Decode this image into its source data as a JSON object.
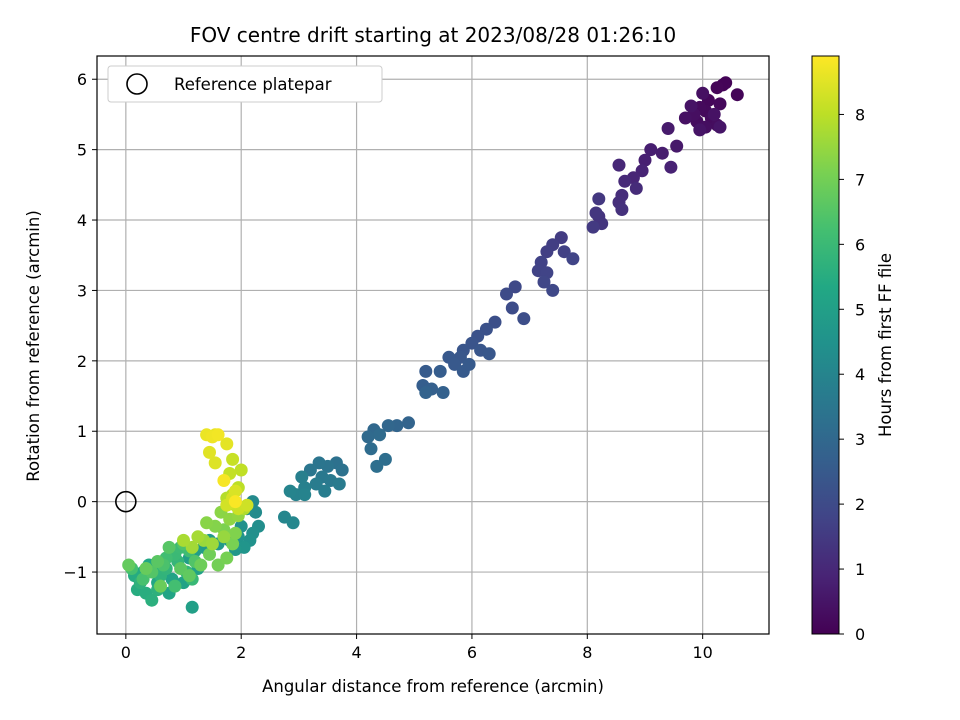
{
  "chart_data": {
    "type": "scatter",
    "title": "FOV centre drift starting at 2023/08/28 01:26:10",
    "xlabel": "Angular distance from reference (arcmin)",
    "ylabel": "Rotation from reference (arcmin)",
    "xlim": [
      -0.5,
      11.15
    ],
    "ylim": [
      -1.88,
      6.33
    ],
    "xticks": [
      0,
      2,
      4,
      6,
      8,
      10
    ],
    "yticks": [
      -1,
      0,
      1,
      2,
      3,
      4,
      5,
      6
    ],
    "grid": true,
    "legend": {
      "location": "upper-left",
      "entries": [
        "Reference platepar"
      ]
    },
    "colorbar": {
      "label": "Hours from first FF file",
      "colormap": "viridis",
      "range": [
        0,
        8.9
      ],
      "ticks": [
        0,
        1,
        2,
        3,
        4,
        5,
        6,
        7,
        8
      ]
    },
    "reference_point": {
      "x": 0,
      "y": 0,
      "name": "Reference platepar"
    },
    "point_fields": [
      "x",
      "y",
      "hours"
    ],
    "points": [
      [
        10.35,
        5.92,
        0.05
      ],
      [
        10.4,
        5.95,
        0.08
      ],
      [
        10.6,
        5.78,
        0.1
      ],
      [
        10.25,
        5.88,
        0.12
      ],
      [
        10.1,
        5.7,
        0.15
      ],
      [
        10.3,
        5.65,
        0.18
      ],
      [
        10.05,
        5.55,
        0.2
      ],
      [
        9.95,
        5.6,
        0.22
      ],
      [
        10.15,
        5.45,
        0.25
      ],
      [
        9.9,
        5.4,
        0.28
      ],
      [
        10.25,
        5.35,
        0.3
      ],
      [
        10.05,
        5.32,
        0.32
      ],
      [
        9.85,
        5.5,
        0.35
      ],
      [
        10.0,
        5.8,
        0.38
      ],
      [
        9.7,
        5.45,
        0.4
      ],
      [
        10.2,
        5.5,
        0.42
      ],
      [
        9.8,
        5.62,
        0.45
      ],
      [
        9.95,
        5.28,
        0.48
      ],
      [
        10.3,
        5.32,
        0.5
      ],
      [
        9.55,
        5.05,
        0.6
      ],
      [
        9.4,
        5.3,
        0.65
      ],
      [
        9.3,
        4.95,
        0.7
      ],
      [
        9.1,
        5.0,
        0.75
      ],
      [
        9.0,
        4.85,
        0.8
      ],
      [
        9.45,
        4.75,
        0.85
      ],
      [
        8.95,
        4.7,
        0.9
      ],
      [
        8.8,
        4.6,
        0.95
      ],
      [
        8.55,
        4.78,
        1.0
      ],
      [
        8.65,
        4.55,
        1.05
      ],
      [
        8.85,
        4.45,
        1.1
      ],
      [
        8.6,
        4.35,
        1.15
      ],
      [
        8.55,
        4.25,
        1.2
      ],
      [
        8.6,
        4.15,
        1.25
      ],
      [
        8.2,
        4.05,
        1.3
      ],
      [
        8.25,
        3.95,
        1.35
      ],
      [
        8.15,
        4.1,
        1.4
      ],
      [
        8.2,
        4.3,
        1.45
      ],
      [
        8.1,
        3.9,
        1.5
      ],
      [
        7.55,
        3.75,
        1.55
      ],
      [
        7.4,
        3.65,
        1.6
      ],
      [
        7.3,
        3.55,
        1.65
      ],
      [
        7.6,
        3.55,
        1.7
      ],
      [
        7.2,
        3.4,
        1.72
      ],
      [
        7.15,
        3.28,
        1.75
      ],
      [
        7.3,
        3.25,
        1.78
      ],
      [
        7.75,
        3.45,
        1.8
      ],
      [
        7.25,
        3.12,
        1.85
      ],
      [
        7.4,
        3.0,
        1.9
      ],
      [
        6.75,
        3.05,
        1.95
      ],
      [
        6.6,
        2.95,
        2.0
      ],
      [
        6.7,
        2.75,
        2.05
      ],
      [
        6.9,
        2.6,
        2.1
      ],
      [
        6.4,
        2.55,
        2.15
      ],
      [
        6.25,
        2.45,
        2.2
      ],
      [
        6.1,
        2.35,
        2.25
      ],
      [
        6.0,
        2.25,
        2.3
      ],
      [
        5.85,
        2.15,
        2.35
      ],
      [
        6.15,
        2.15,
        2.38
      ],
      [
        5.8,
        2.05,
        2.4
      ],
      [
        6.3,
        2.1,
        2.42
      ],
      [
        5.6,
        2.05,
        2.45
      ],
      [
        5.7,
        1.95,
        2.48
      ],
      [
        5.85,
        1.85,
        2.5
      ],
      [
        5.95,
        1.95,
        2.52
      ],
      [
        5.2,
        1.85,
        2.55
      ],
      [
        5.45,
        1.85,
        2.6
      ],
      [
        5.15,
        1.65,
        2.65
      ],
      [
        5.3,
        1.6,
        2.7
      ],
      [
        5.5,
        1.55,
        2.75
      ],
      [
        5.2,
        1.55,
        2.8
      ],
      [
        4.9,
        1.12,
        2.85
      ],
      [
        4.7,
        1.08,
        2.9
      ],
      [
        4.55,
        1.08,
        2.95
      ],
      [
        4.3,
        1.02,
        3.0
      ],
      [
        4.2,
        0.92,
        3.05
      ],
      [
        4.4,
        0.95,
        3.1
      ],
      [
        4.25,
        0.75,
        3.15
      ],
      [
        4.5,
        0.6,
        3.2
      ],
      [
        4.35,
        0.5,
        3.25
      ],
      [
        3.65,
        0.55,
        3.3
      ],
      [
        3.75,
        0.45,
        3.35
      ],
      [
        3.5,
        0.5,
        3.4
      ],
      [
        3.35,
        0.55,
        3.45
      ],
      [
        3.2,
        0.45,
        3.5
      ],
      [
        3.4,
        0.35,
        3.55
      ],
      [
        3.55,
        0.3,
        3.6
      ],
      [
        3.7,
        0.25,
        3.65
      ],
      [
        3.3,
        0.25,
        3.7
      ],
      [
        3.45,
        0.15,
        3.75
      ],
      [
        3.05,
        0.35,
        3.8
      ],
      [
        3.1,
        0.2,
        3.85
      ],
      [
        2.95,
        0.1,
        3.9
      ],
      [
        3.1,
        0.1,
        3.95
      ],
      [
        2.85,
        0.15,
        4.0
      ],
      [
        2.75,
        -0.22,
        4.05
      ],
      [
        2.9,
        -0.3,
        4.1
      ],
      [
        2.2,
        0.0,
        4.2
      ],
      [
        2.25,
        -0.15,
        4.25
      ],
      [
        2.1,
        -0.1,
        4.3
      ],
      [
        2.3,
        -0.35,
        4.35
      ],
      [
        2.2,
        -0.45,
        4.4
      ],
      [
        2.0,
        -0.35,
        4.45
      ],
      [
        2.15,
        -0.55,
        4.5
      ],
      [
        1.95,
        -0.5,
        4.55
      ],
      [
        2.05,
        -0.65,
        4.6
      ],
      [
        1.8,
        -0.55,
        4.65
      ],
      [
        1.9,
        -0.68,
        4.7
      ],
      [
        1.6,
        -0.6,
        4.75
      ],
      [
        1.45,
        -0.55,
        4.8
      ],
      [
        1.35,
        -0.65,
        4.85
      ],
      [
        1.2,
        -0.7,
        4.9
      ],
      [
        1.1,
        -0.8,
        4.95
      ],
      [
        1.15,
        -1.5,
        5.0
      ],
      [
        1.25,
        -0.95,
        5.05
      ],
      [
        1.0,
        -1.15,
        5.1
      ],
      [
        0.8,
        -1.1,
        5.15
      ],
      [
        0.75,
        -1.3,
        5.2
      ],
      [
        0.55,
        -1.15,
        5.25
      ],
      [
        0.4,
        -0.9,
        5.3
      ],
      [
        0.3,
        -1.0,
        5.35
      ],
      [
        0.5,
        -0.95,
        5.4
      ],
      [
        0.15,
        -1.05,
        5.45
      ],
      [
        0.2,
        -1.25,
        5.5
      ],
      [
        0.35,
        -1.3,
        5.55
      ],
      [
        0.45,
        -1.4,
        5.6
      ],
      [
        0.55,
        -1.25,
        5.65
      ],
      [
        0.25,
        -1.15,
        5.7
      ],
      [
        0.6,
        -1.05,
        5.75
      ],
      [
        0.7,
        -0.95,
        5.8
      ],
      [
        0.9,
        -0.85,
        5.85
      ],
      [
        1.05,
        -1.0,
        5.9
      ],
      [
        1.15,
        -1.1,
        5.95
      ],
      [
        0.85,
        -0.75,
        6.0
      ],
      [
        0.95,
        -0.65,
        6.05
      ],
      [
        1.1,
        -0.7,
        6.1
      ],
      [
        0.7,
        -0.8,
        6.15
      ],
      [
        0.85,
        -1.2,
        6.2
      ],
      [
        0.1,
        -0.95,
        6.25
      ],
      [
        0.3,
        -1.1,
        6.3
      ],
      [
        0.65,
        -0.9,
        6.35
      ],
      [
        1.0,
        -0.6,
        6.4
      ],
      [
        1.2,
        -0.85,
        6.45
      ],
      [
        0.45,
        -1.0,
        6.5
      ],
      [
        0.75,
        -0.65,
        6.55
      ],
      [
        0.55,
        -0.85,
        6.6
      ],
      [
        0.95,
        -0.95,
        6.65
      ],
      [
        1.1,
        -1.05,
        6.7
      ],
      [
        0.05,
        -0.9,
        6.75
      ],
      [
        0.35,
        -0.95,
        6.8
      ],
      [
        0.6,
        -1.2,
        6.85
      ],
      [
        1.3,
        -0.9,
        6.9
      ],
      [
        1.45,
        -0.75,
        6.95
      ],
      [
        1.6,
        -0.9,
        7.0
      ],
      [
        1.75,
        -0.8,
        7.05
      ],
      [
        1.85,
        -0.6,
        7.1
      ],
      [
        1.7,
        -0.4,
        7.15
      ],
      [
        1.9,
        -0.45,
        7.2
      ],
      [
        1.55,
        -0.35,
        7.25
      ],
      [
        1.4,
        -0.3,
        7.3
      ],
      [
        1.65,
        -0.15,
        7.35
      ],
      [
        1.8,
        -0.25,
        7.4
      ],
      [
        1.95,
        -0.2,
        7.45
      ],
      [
        1.7,
        -0.5,
        7.5
      ],
      [
        1.35,
        -0.55,
        7.55
      ],
      [
        1.5,
        -0.6,
        7.6
      ],
      [
        1.15,
        -0.65,
        7.65
      ],
      [
        1.25,
        -0.5,
        7.7
      ],
      [
        1.0,
        -0.55,
        7.75
      ],
      [
        1.9,
        -0.05,
        7.8
      ],
      [
        2.05,
        -0.1,
        7.85
      ],
      [
        1.75,
        0.05,
        7.9
      ],
      [
        1.85,
        0.1,
        7.95
      ],
      [
        1.95,
        0.2,
        8.0
      ],
      [
        2.0,
        0.45,
        8.05
      ],
      [
        1.8,
        0.4,
        8.1
      ],
      [
        1.85,
        0.6,
        8.15
      ],
      [
        1.95,
        -0.1,
        8.2
      ],
      [
        2.1,
        -0.05,
        8.25
      ],
      [
        1.75,
        -0.05,
        8.3
      ],
      [
        1.85,
        0.05,
        8.35
      ],
      [
        1.9,
        0.15,
        8.4
      ],
      [
        1.55,
        0.55,
        8.45
      ],
      [
        1.45,
        0.7,
        8.5
      ],
      [
        1.75,
        0.82,
        8.55
      ],
      [
        1.55,
        0.95,
        8.6
      ],
      [
        1.4,
        0.95,
        8.65
      ],
      [
        1.5,
        0.92,
        8.7
      ],
      [
        1.6,
        0.95,
        8.75
      ],
      [
        1.7,
        0.3,
        8.8
      ],
      [
        1.9,
        0.0,
        8.85
      ]
    ]
  }
}
